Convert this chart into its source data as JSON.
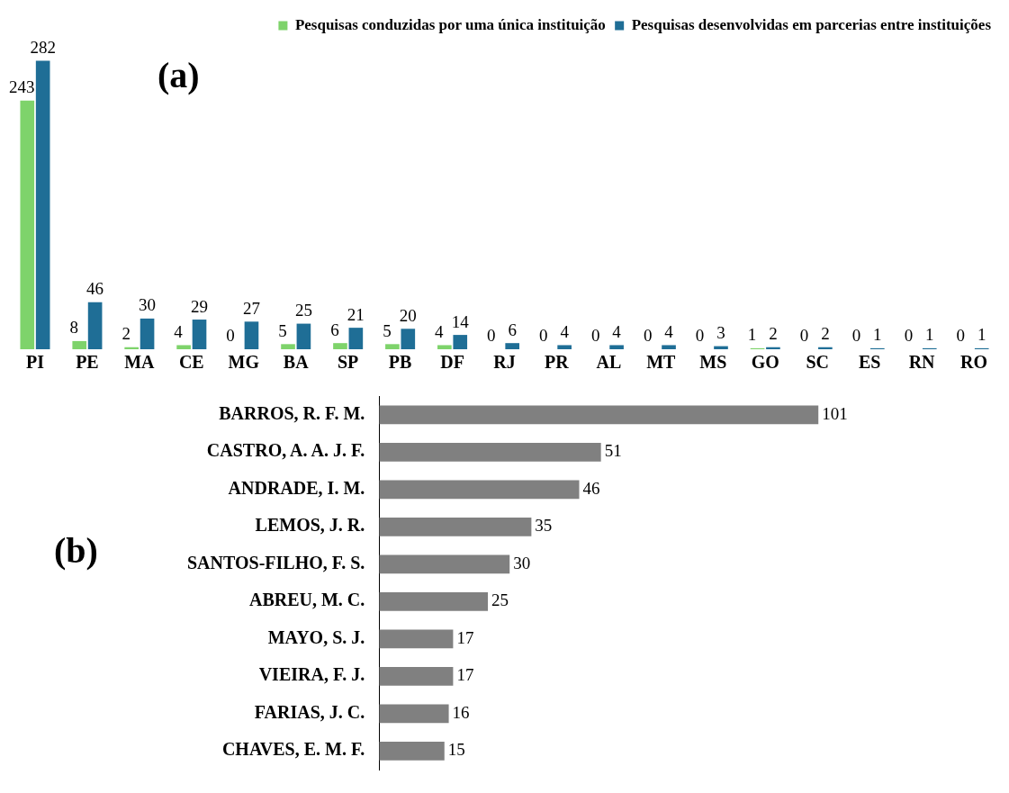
{
  "chart_data": [
    {
      "type": "bar",
      "annotations": [
        "(a)"
      ],
      "categories": [
        "PI",
        "PE",
        "MA",
        "CE",
        "MG",
        "BA",
        "SP",
        "PB",
        "DF",
        "RJ",
        "PR",
        "AL",
        "MT",
        "MS",
        "GO",
        "SC",
        "ES",
        "RN",
        "RO"
      ],
      "series": [
        {
          "name": "Pesquisas conduzidas por uma única instituição",
          "color": "#7ed36b",
          "values": [
            243,
            8,
            2,
            4,
            0,
            5,
            6,
            5,
            4,
            0,
            0,
            0,
            0,
            0,
            1,
            0,
            0,
            0,
            0
          ]
        },
        {
          "name": "Pesquisas desenvolvidas em parcerias entre instituições",
          "color": "#1f6e96",
          "values": [
            282,
            46,
            30,
            29,
            27,
            25,
            21,
            20,
            14,
            6,
            4,
            4,
            4,
            3,
            2,
            2,
            1,
            1,
            1
          ]
        }
      ],
      "data_labels": true,
      "legend": "top right",
      "grid": false
    },
    {
      "type": "bar",
      "orientation": "horizontal",
      "annotations": [
        "(b)"
      ],
      "categories": [
        "BARROS, R. F. M.",
        "CASTRO, A. A. J. F.",
        "ANDRADE, I. M.",
        "LEMOS, J. R.",
        "SANTOS-FILHO, F. S.",
        "ABREU, M. C.",
        "MAYO, S. J.",
        "VIEIRA, F. J.",
        "FARIAS, J. C.",
        "CHAVES, E. M. F."
      ],
      "values": [
        101,
        51,
        46,
        35,
        30,
        25,
        17,
        17,
        16,
        15
      ],
      "color": "#808080",
      "data_labels": true,
      "grid": false
    }
  ]
}
